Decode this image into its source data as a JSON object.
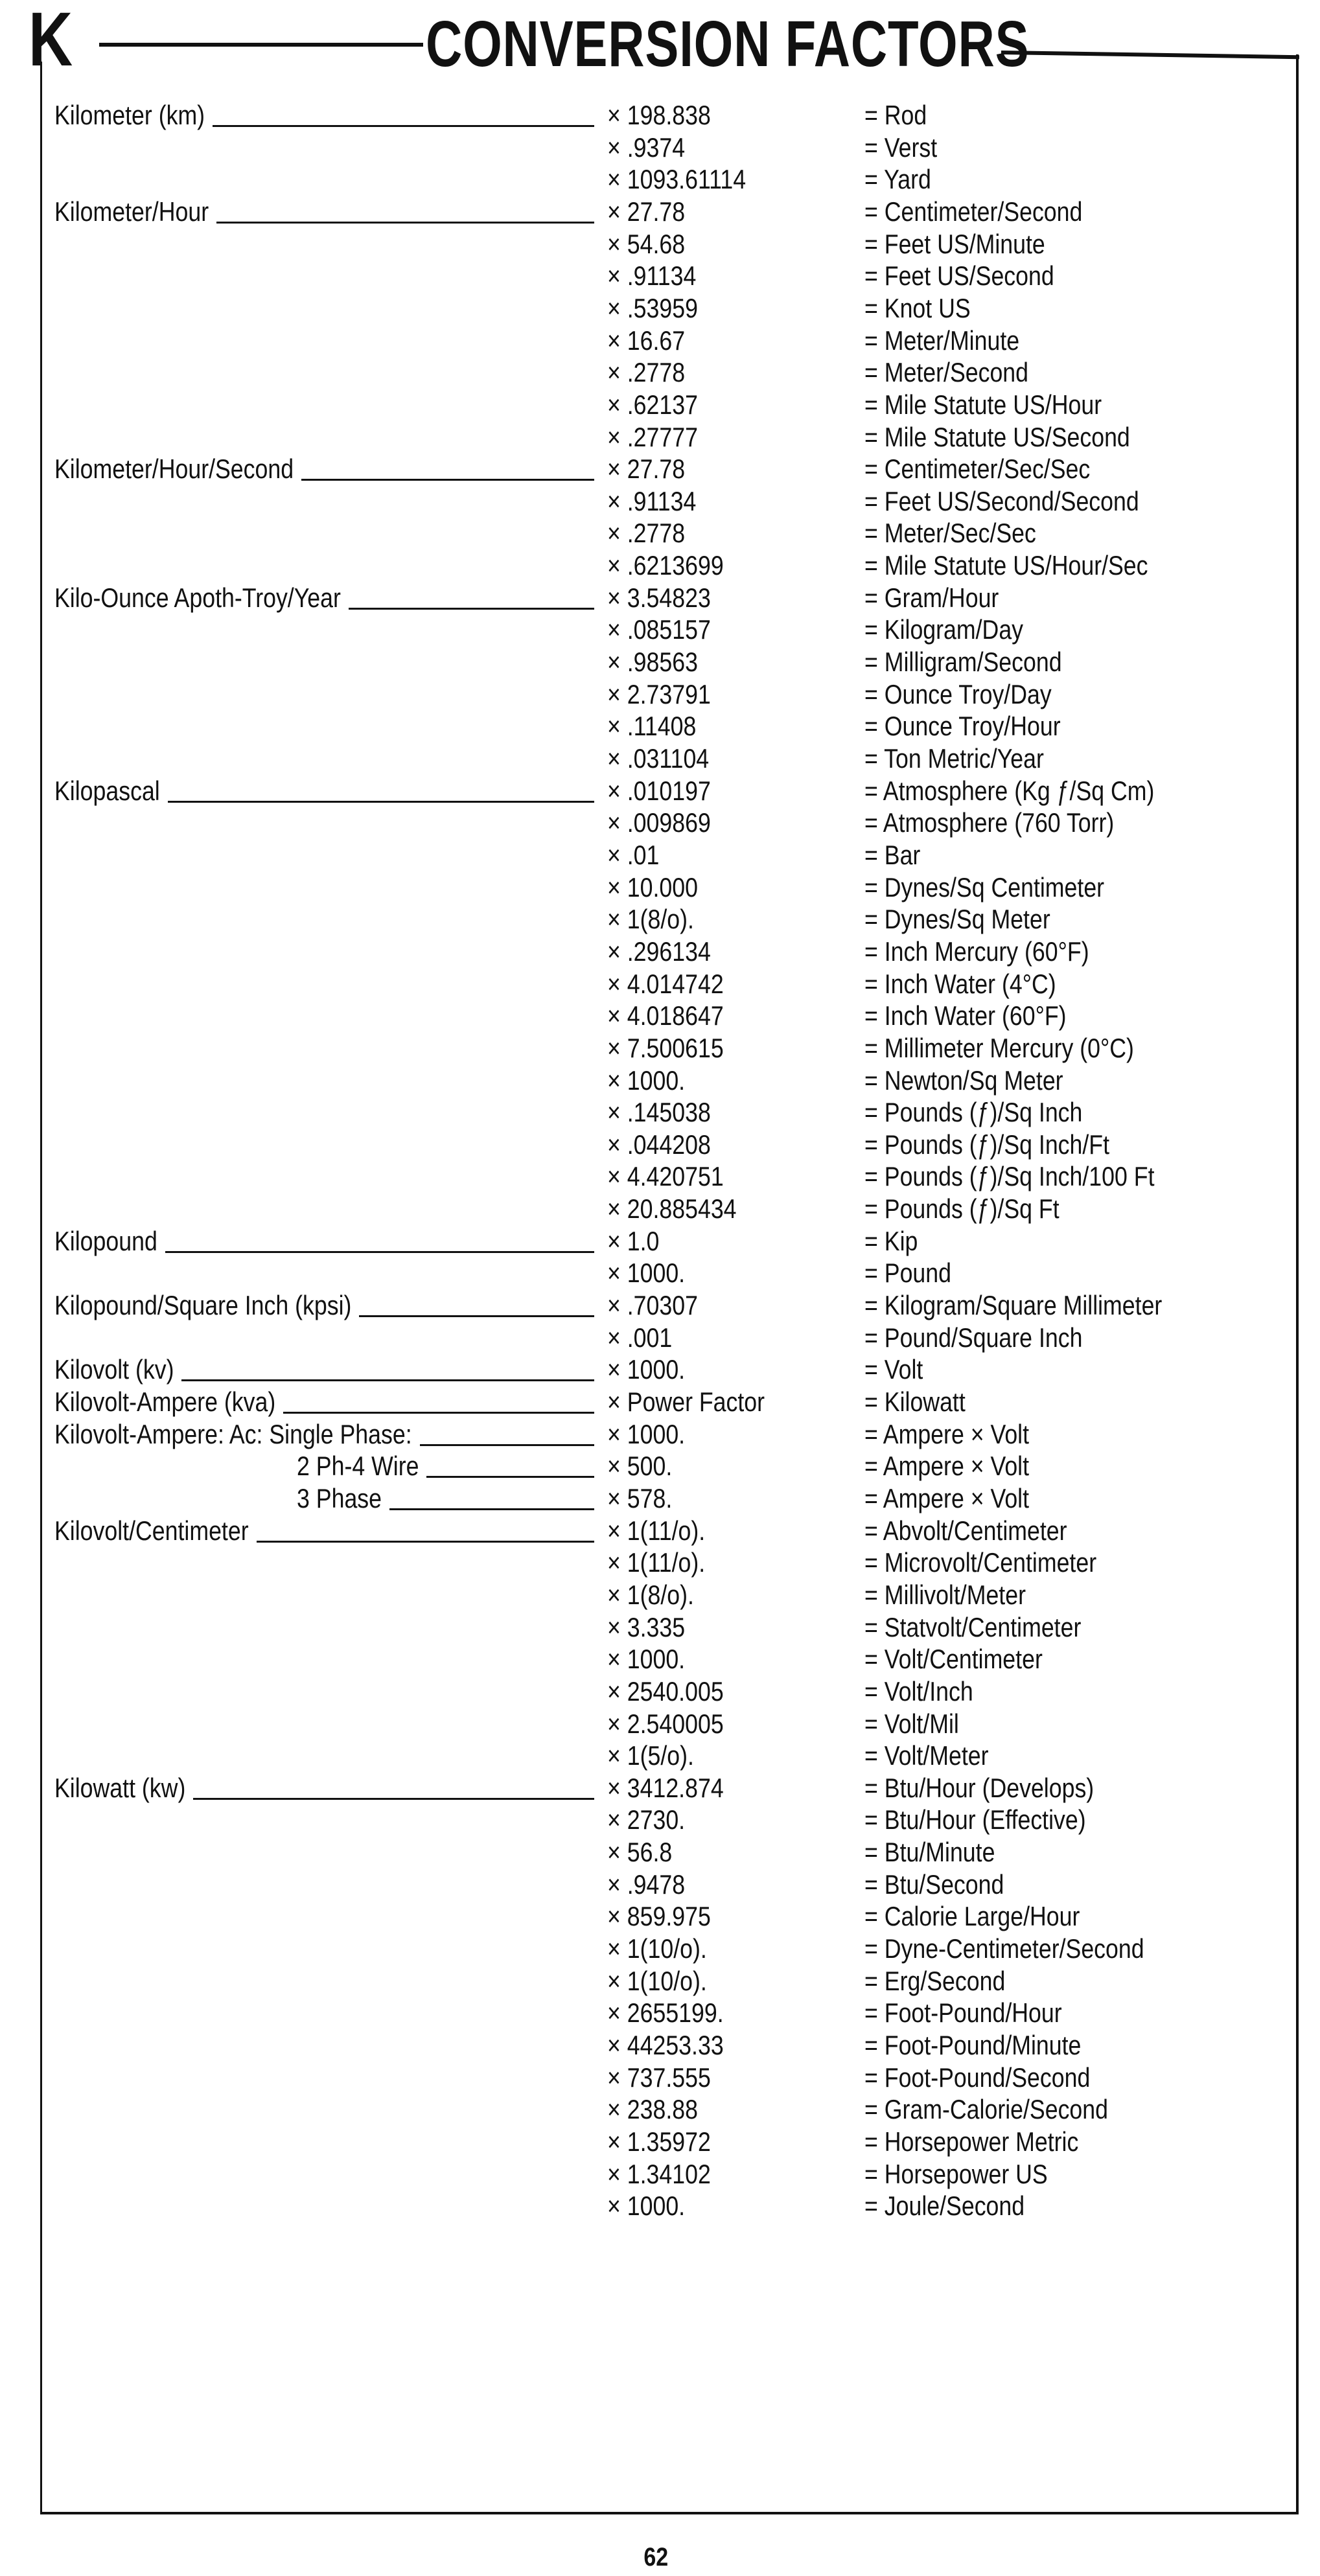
{
  "header": {
    "letter": "K",
    "title": "CONVERSION FACTORS"
  },
  "footer": {
    "page_number": "62"
  },
  "groups": [
    {
      "label": "Kilometer (km)",
      "rows": [
        [
          "× 198.838",
          "= Rod"
        ],
        [
          "× .9374",
          "= Verst"
        ],
        [
          "× 1093.61114",
          "= Yard"
        ]
      ]
    },
    {
      "label": "Kilometer/Hour",
      "rows": [
        [
          "× 27.78",
          "= Centimeter/Second"
        ],
        [
          "× 54.68",
          "= Feet US/Minute"
        ],
        [
          "× .91134",
          "= Feet US/Second"
        ],
        [
          "× .53959",
          "= Knot US"
        ],
        [
          "× 16.67",
          "= Meter/Minute"
        ],
        [
          "× .2778",
          "= Meter/Second"
        ],
        [
          "× .62137",
          "= Mile Statute US/Hour"
        ],
        [
          "× .27777",
          "= Mile Statute US/Second"
        ]
      ]
    },
    {
      "label": "Kilometer/Hour/Second",
      "rows": [
        [
          "× 27.78",
          "= Centimeter/Sec/Sec"
        ],
        [
          "× .91134",
          "= Feet US/Second/Second"
        ],
        [
          "× .2778",
          "= Meter/Sec/Sec"
        ],
        [
          "× .6213699",
          "= Mile Statute US/Hour/Sec"
        ]
      ]
    },
    {
      "label": "Kilo-Ounce Apoth-Troy/Year",
      "rows": [
        [
          "× 3.54823",
          "= Gram/Hour"
        ],
        [
          "× .085157",
          "= Kilogram/Day"
        ],
        [
          "× .98563",
          "= Milligram/Second"
        ],
        [
          "× 2.73791",
          "= Ounce Troy/Day"
        ],
        [
          "× .11408",
          "= Ounce Troy/Hour"
        ],
        [
          "× .031104",
          "= Ton Metric/Year"
        ]
      ]
    },
    {
      "label": "Kilopascal",
      "rows": [
        [
          "× .010197",
          "= Atmosphere (Kg ƒ/Sq Cm)"
        ],
        [
          "× .009869",
          "= Atmosphere (760 Torr)"
        ],
        [
          "× .01",
          "= Bar"
        ],
        [
          "× 10.000",
          "= Dynes/Sq Centimeter"
        ],
        [
          "× 1(8/o).",
          "= Dynes/Sq Meter"
        ],
        [
          "× .296134",
          "= Inch Mercury (60°F)"
        ],
        [
          "× 4.014742",
          "= Inch Water (4°C)"
        ],
        [
          "× 4.018647",
          "= Inch Water (60°F)"
        ],
        [
          "× 7.500615",
          "= Millimeter Mercury (0°C)"
        ],
        [
          "× 1000.",
          "= Newton/Sq Meter"
        ],
        [
          "× .145038",
          "= Pounds (ƒ)/Sq Inch"
        ],
        [
          "× .044208",
          "= Pounds (ƒ)/Sq Inch/Ft"
        ],
        [
          "× 4.420751",
          "= Pounds (ƒ)/Sq Inch/100 Ft"
        ],
        [
          "× 20.885434",
          "= Pounds (ƒ)/Sq Ft"
        ]
      ]
    },
    {
      "label": "Kilopound",
      "rows": [
        [
          "× 1.0",
          "= Kip"
        ],
        [
          "× 1000.",
          "= Pound"
        ]
      ]
    },
    {
      "label": "Kilopound/Square Inch (kpsi)",
      "rows": [
        [
          "× .70307",
          "= Kilogram/Square Millimeter"
        ],
        [
          "× .001",
          "= Pound/Square Inch"
        ]
      ]
    },
    {
      "label": "Kilovolt (kv)",
      "rows": [
        [
          "× 1000.",
          "= Volt"
        ]
      ]
    },
    {
      "label": "Kilovolt-Ampere (kva)",
      "rows": [
        [
          "× Power Factor",
          "= Kilowatt"
        ]
      ]
    },
    {
      "label": "Kilovolt-Ampere: Ac: Single Phase:",
      "rows": [
        [
          "× 1000.",
          "= Ampere × Volt"
        ]
      ]
    },
    {
      "label": "2 Ph-4 Wire",
      "indent": true,
      "rows": [
        [
          "× 500.",
          "= Ampere × Volt"
        ]
      ]
    },
    {
      "label": "3 Phase",
      "indent": true,
      "rows": [
        [
          "× 578.",
          "= Ampere × Volt"
        ]
      ]
    },
    {
      "label": "Kilovolt/Centimeter",
      "rows": [
        [
          "× 1(11/o).",
          "= Abvolt/Centimeter"
        ],
        [
          "× 1(11/o).",
          "= Microvolt/Centimeter"
        ],
        [
          "× 1(8/o).",
          "= Millivolt/Meter"
        ],
        [
          "× 3.335",
          "= Statvolt/Centimeter"
        ],
        [
          "× 1000.",
          "= Volt/Centimeter"
        ],
        [
          "× 2540.005",
          "= Volt/Inch"
        ],
        [
          "× 2.540005",
          "= Volt/Mil"
        ],
        [
          "× 1(5/o).",
          "= Volt/Meter"
        ]
      ]
    },
    {
      "label": "Kilowatt (kw)",
      "rows": [
        [
          "× 3412.874",
          "= Btu/Hour (Develops)"
        ],
        [
          "× 2730.",
          "= Btu/Hour (Effective)"
        ],
        [
          "× 56.8",
          "= Btu/Minute"
        ],
        [
          "× .9478",
          "= Btu/Second"
        ],
        [
          "× 859.975",
          "= Calorie Large/Hour"
        ],
        [
          "× 1(10/o).",
          "= Dyne-Centimeter/Second"
        ],
        [
          "× 1(10/o).",
          "= Erg/Second"
        ],
        [
          "× 2655199.",
          "= Foot-Pound/Hour"
        ],
        [
          "× 44253.33",
          "= Foot-Pound/Minute"
        ],
        [
          "× 737.555",
          "= Foot-Pound/Second"
        ],
        [
          "× 238.88",
          "= Gram-Calorie/Second"
        ],
        [
          "× 1.35972",
          "= Horsepower Metric"
        ],
        [
          "× 1.34102",
          "= Horsepower US"
        ],
        [
          "× 1000.",
          "= Joule/Second"
        ]
      ]
    }
  ]
}
